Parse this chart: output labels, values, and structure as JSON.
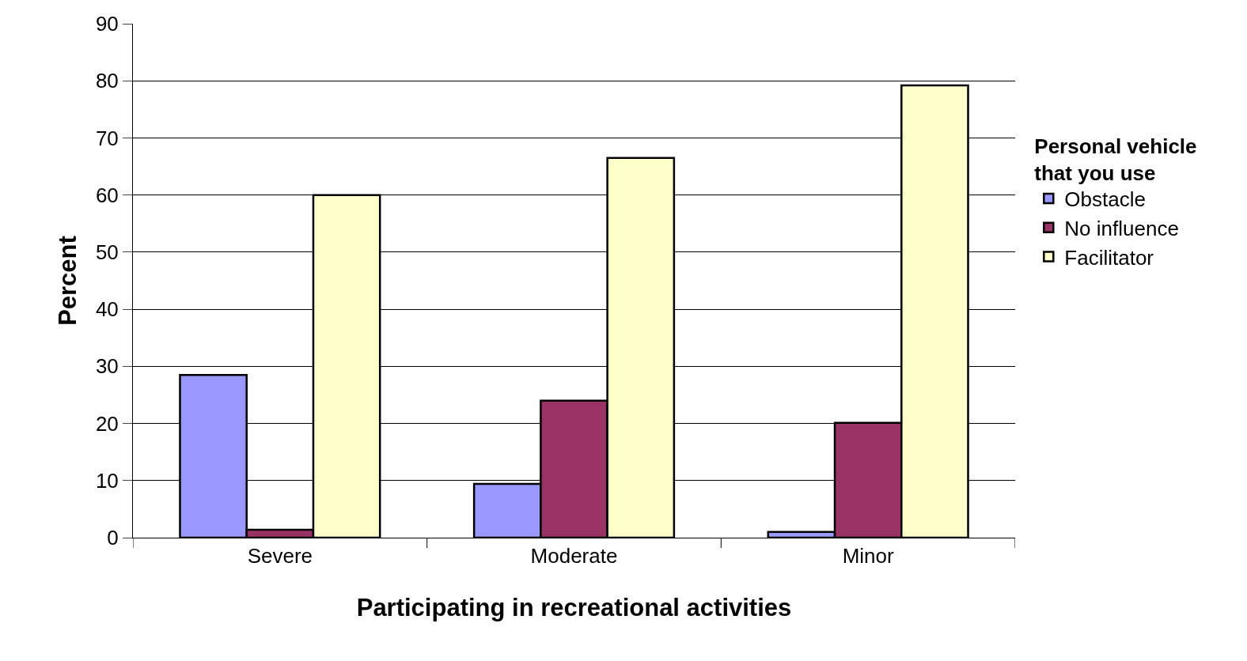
{
  "chart_data": {
    "type": "bar",
    "xlabel": "Participating in recreational activities",
    "ylabel": "Percent",
    "legend_title": "Personal vehicle that you use",
    "categories": [
      "Severe",
      "Moderate",
      "Minor"
    ],
    "series": [
      {
        "name": "Obstacle",
        "color": "#9999ff",
        "values": [
          28.5,
          9.4,
          1.0
        ]
      },
      {
        "name": "No influence",
        "color": "#993366",
        "values": [
          1.4,
          24.0,
          20.1
        ]
      },
      {
        "name": "Facilitator",
        "color": "#ffffcc",
        "values": [
          60.0,
          66.5,
          79.2
        ]
      }
    ],
    "ylim": [
      0,
      90
    ],
    "yticks": [
      0,
      10,
      20,
      30,
      40,
      50,
      60,
      70,
      80,
      90
    ],
    "grid": "y",
    "legend": "right"
  }
}
